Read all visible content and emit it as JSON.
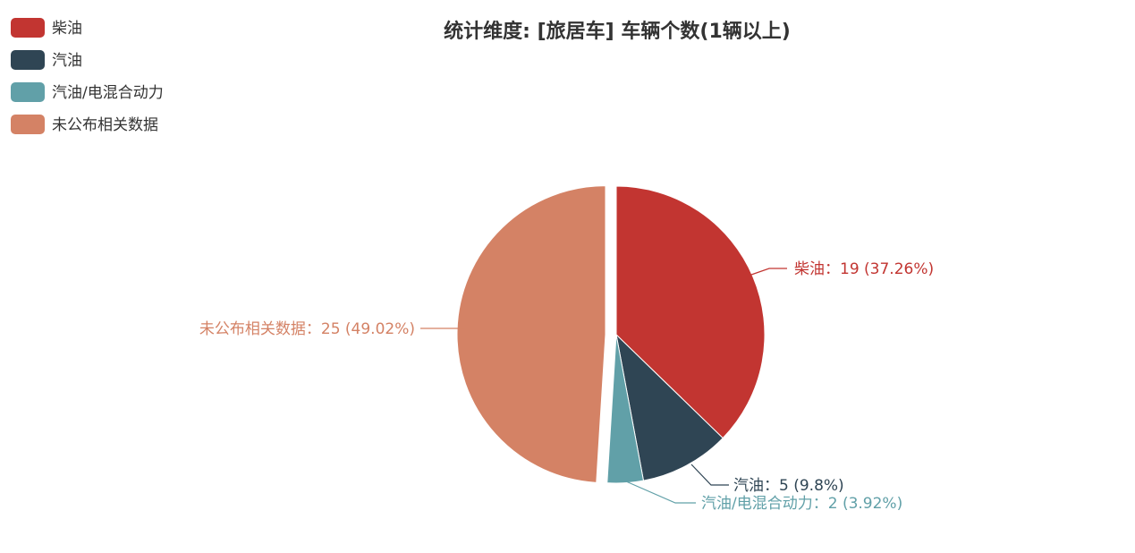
{
  "chart_data": {
    "type": "pie",
    "title": "统计维度: [旅居车] 车辆个数(1辆以上)",
    "legend_position": "top-left",
    "categories": [
      "柴油",
      "汽油",
      "汽油/电混合动力",
      "未公布相关数据"
    ],
    "values": [
      19,
      5,
      2,
      25
    ],
    "percents": [
      "37.26%",
      "9.8%",
      "3.92%",
      "49.02%"
    ],
    "labels": [
      "柴油：19 (37.26%)",
      "汽油：5 (9.8%)",
      "汽油/电混合动力：2 (3.92%)",
      "未公布相关数据：25 (49.02%)"
    ],
    "colors": [
      "#c23531",
      "#2f4554",
      "#61a0a8",
      "#d48265"
    ],
    "selected": "未公布相关数据"
  }
}
